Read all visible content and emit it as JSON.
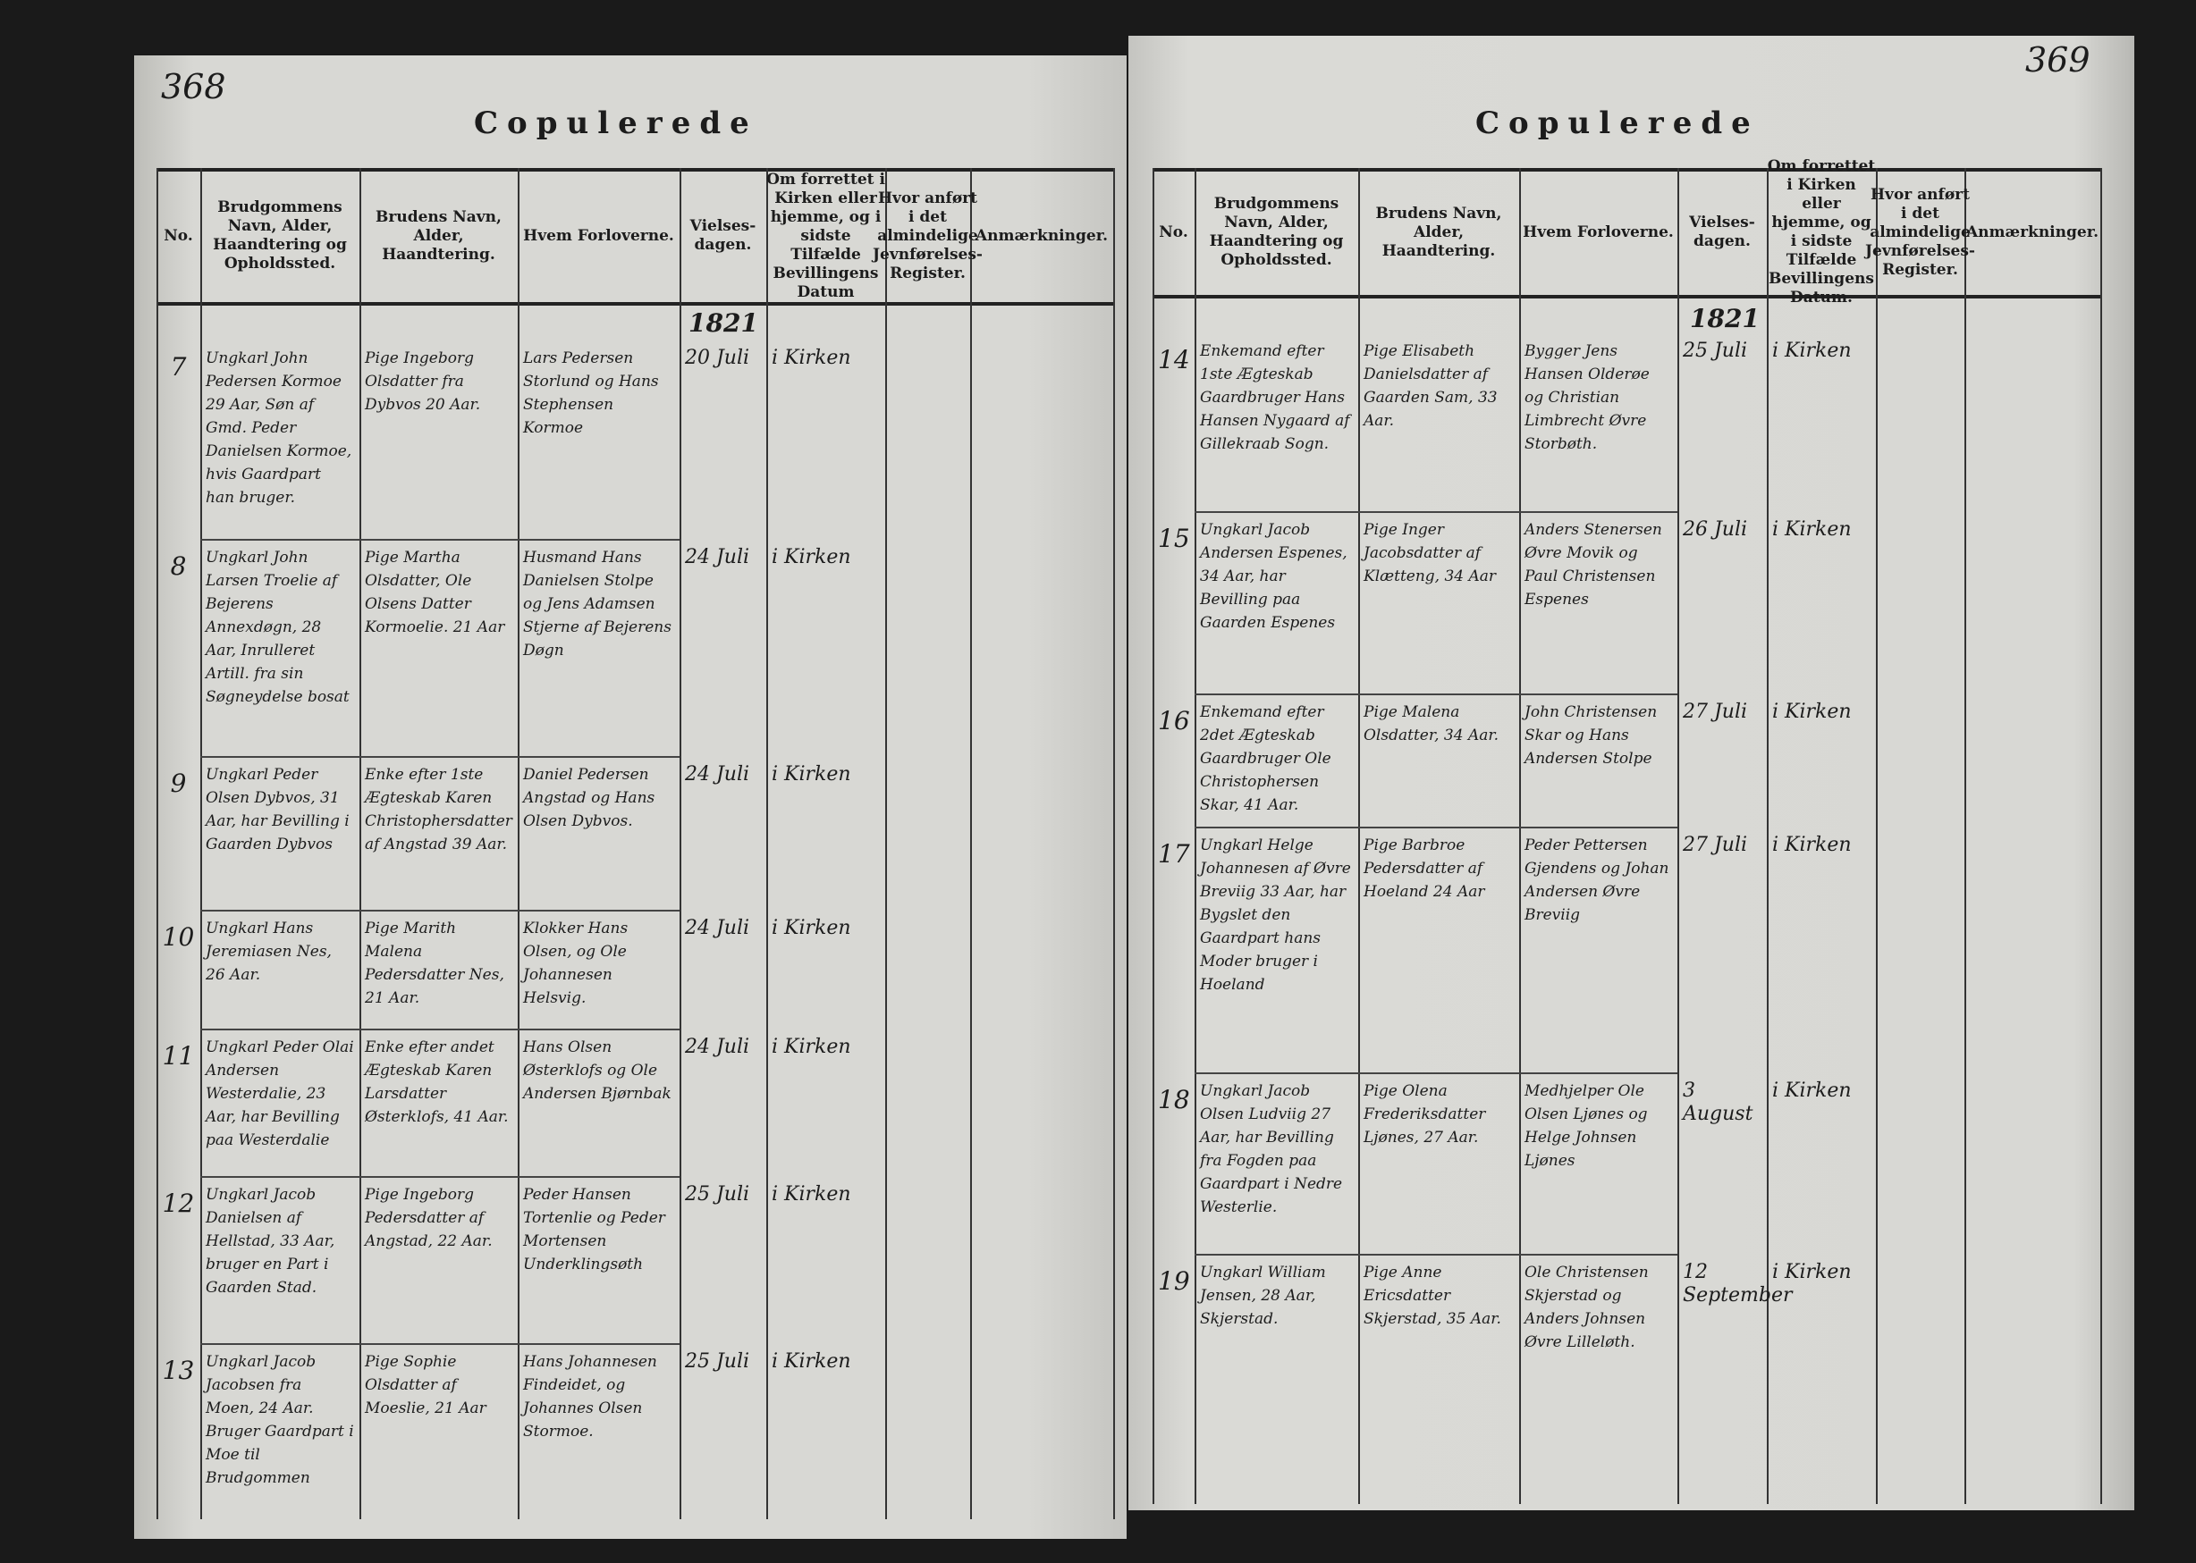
{
  "left_page": {
    "page_number": "368",
    "title": "Copulerede",
    "year": "1821",
    "headers": [
      "No.",
      "Brudgommens Navn, Alder, Haandtering og Opholdssted.",
      "Brudens Navn, Alder, Haandtering.",
      "Hvem Forloverne.",
      "Vielses-dagen.",
      "Om forrettet i Kirken eller hjemme, og i sidste Tilfælde Bevillingens Datum",
      "Hvor anført i det almindelige Jevnførelses-Register.",
      "Anmærkninger."
    ],
    "entries": [
      {
        "no": "7",
        "groom": "Ungkarl John Pedersen Kormoe 29 Aar, Søn af Gmd. Peder Danielsen Kormoe, hvis Gaardpart han bruger.",
        "bride": "Pige Ingeborg Olsdatter fra Dybvos 20 Aar.",
        "witnesses": "Lars Pedersen Storlund og Hans Stephensen Kormoe",
        "date": "20 Juli",
        "place": "i Kirken"
      },
      {
        "no": "8",
        "groom": "Ungkarl John Larsen Troelie af Bejerens Annexdøgn, 28 Aar, Inrulleret Artill. fra sin Søgneydelse bosat",
        "bride": "Pige Martha Olsdatter, Ole Olsens Datter Kormoelie. 21 Aar",
        "witnesses": "Husmand Hans Danielsen Stolpe og Jens Adamsen Stjerne af Bejerens Døgn",
        "date": "24 Juli",
        "place": "i Kirken"
      },
      {
        "no": "9",
        "groom": "Ungkarl Peder Olsen Dybvos, 31 Aar, har Bevilling i Gaarden Dybvos",
        "bride": "Enke efter 1ste Ægteskab Karen Christophersdatter af Angstad 39 Aar.",
        "witnesses": "Daniel Pedersen Angstad og Hans Olsen Dybvos.",
        "date": "24 Juli",
        "place": "i Kirken"
      },
      {
        "no": "10",
        "groom": "Ungkarl Hans Jeremiasen Nes, 26 Aar.",
        "bride": "Pige Marith Malena Pedersdatter Nes, 21 Aar.",
        "witnesses": "Klokker Hans Olsen, og Ole Johannesen Helsvig.",
        "date": "24 Juli",
        "place": "i Kirken"
      },
      {
        "no": "11",
        "groom": "Ungkarl Peder Olai Andersen Westerdalie, 23 Aar, har Bevilling paa Westerdalie",
        "bride": "Enke efter andet Ægteskab Karen Larsdatter Østerklofs, 41 Aar.",
        "witnesses": "Hans Olsen Østerklofs og Ole Andersen Bjørnbak",
        "date": "24 Juli",
        "place": "i Kirken"
      },
      {
        "no": "12",
        "groom": "Ungkarl Jacob Danielsen af Hellstad, 33 Aar, bruger en Part i Gaarden Stad.",
        "bride": "Pige Ingeborg Pedersdatter af Angstad, 22 Aar.",
        "witnesses": "Peder Hansen Tortenlie og Peder Mortensen Underklingsøth",
        "date": "25 Juli",
        "place": "i Kirken"
      },
      {
        "no": "13",
        "groom": "Ungkarl Jacob Jacobsen fra Moen, 24 Aar. Bruger Gaardpart i Moe til Brudgommen",
        "bride": "Pige Sophie Olsdatter af Moeslie, 21 Aar",
        "witnesses": "Hans Johannesen Findeidet, og Johannes Olsen Stormoe.",
        "date": "25 Juli",
        "place": "i Kirken"
      }
    ]
  },
  "right_page": {
    "page_number": "369",
    "title": "Copulerede",
    "year": "1821",
    "headers": [
      "No.",
      "Brudgommens Navn, Alder, Haandtering og Opholdssted.",
      "Brudens Navn, Alder, Haandtering.",
      "Hvem Forloverne.",
      "Vielses-dagen.",
      "Om forrettet i Kirken eller hjemme, og i sidste Tilfælde Bevillingens Datum.",
      "Hvor anført i det almindelige Jevnførelses-Register.",
      "Anmærkninger."
    ],
    "entries": [
      {
        "no": "14",
        "groom": "Enkemand efter 1ste Ægteskab Gaardbruger Hans Hansen Nygaard af Gillekraab Sogn.",
        "bride": "Pige Elisabeth Danielsdatter af Gaarden Sam, 33 Aar.",
        "witnesses": "Bygger Jens Hansen Olderøe og Christian Limbrecht Øvre Storbøth.",
        "date": "25 Juli",
        "place": "i Kirken"
      },
      {
        "no": "15",
        "groom": "Ungkarl Jacob Andersen Espenes, 34 Aar, har Bevilling paa Gaarden Espenes",
        "bride": "Pige Inger Jacobsdatter af Klætteng, 34 Aar",
        "witnesses": "Anders Stenersen Øvre Movik og Paul Christensen Espenes",
        "date": "26 Juli",
        "place": "i Kirken"
      },
      {
        "no": "16",
        "groom": "Enkemand efter 2det Ægteskab Gaardbruger Ole Christophersen Skar, 41 Aar.",
        "bride": "Pige Malena Olsdatter, 34 Aar.",
        "witnesses": "John Christensen Skar og Hans Andersen Stolpe",
        "date": "27 Juli",
        "place": "i Kirken"
      },
      {
        "no": "17",
        "groom": "Ungkarl Helge Johannesen af Øvre Breviig 33 Aar, har Bygslet den Gaardpart hans Moder bruger i Hoeland",
        "bride": "Pige Barbroe Pedersdatter af Hoeland 24 Aar",
        "witnesses": "Peder Pettersen Gjendens og Johan Andersen Øvre Breviig",
        "date": "27 Juli",
        "place": "i Kirken"
      },
      {
        "no": "18",
        "groom": "Ungkarl Jacob Olsen Ludviig 27 Aar, har Bevilling fra Fogden paa Gaardpart i Nedre Westerlie.",
        "bride": "Pige Olena Frederiksdatter Ljønes, 27 Aar.",
        "witnesses": "Medhjelper Ole Olsen Ljønes og Helge Johnsen Ljønes",
        "date": "3 August",
        "place": "i Kirken"
      },
      {
        "no": "19",
        "groom": "Ungkarl William Jensen, 28 Aar, Skjerstad.",
        "bride": "Pige Anne Ericsdatter Skjerstad, 35 Aar.",
        "witnesses": "Ole Christensen Skjerstad og Anders Johnsen Øvre Lilleløth.",
        "date": "12 September",
        "place": "i Kirken"
      }
    ]
  }
}
